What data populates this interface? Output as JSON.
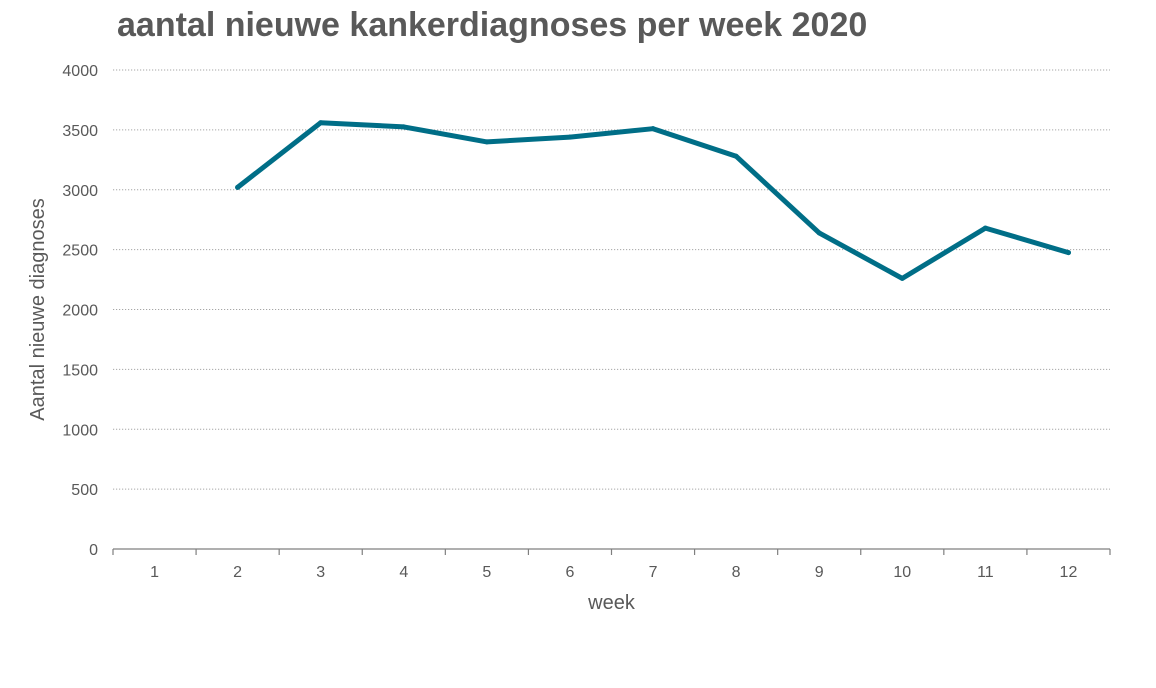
{
  "chart_data": {
    "type": "line",
    "title": "aantal nieuwe kankerdiagnoses per week 2020",
    "xlabel": "week",
    "ylabel": "Aantal nieuwe diagnoses",
    "categories": [
      "1",
      "2",
      "3",
      "4",
      "5",
      "6",
      "7",
      "8",
      "9",
      "10",
      "11",
      "12"
    ],
    "series": [
      {
        "values": [
          null,
          3020,
          3560,
          3525,
          3400,
          3440,
          3510,
          3280,
          2640,
          2260,
          2680,
          2475
        ],
        "color": "#006e87"
      }
    ],
    "ylim": [
      0,
      4000
    ],
    "yticks": [
      0,
      500,
      1000,
      1500,
      2000,
      2500,
      3000,
      3500,
      4000
    ],
    "grid": true,
    "legend": "none"
  }
}
